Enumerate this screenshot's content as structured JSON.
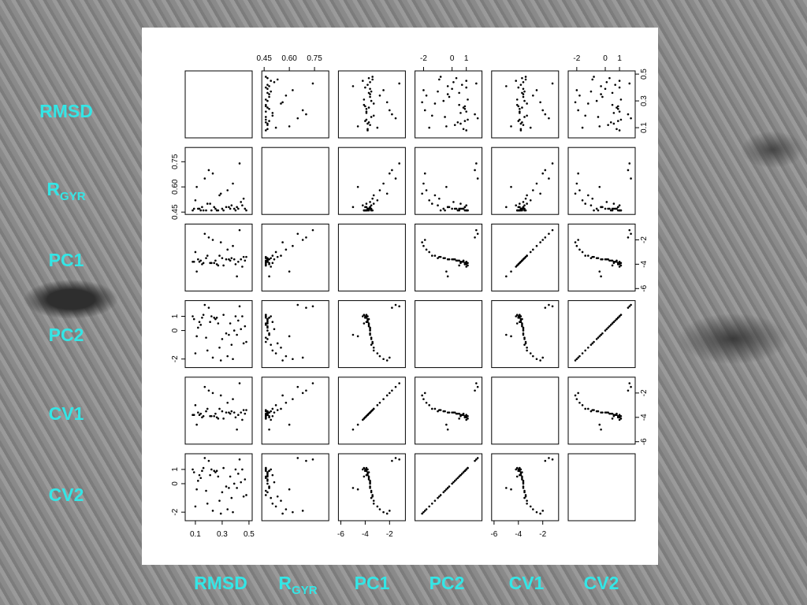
{
  "chart_data": {
    "type": "scatter_matrix",
    "variables": [
      {
        "label": "RMSD",
        "lim": [
          0.024,
          0.524
        ],
        "ticks": [
          0.1,
          0.3,
          0.5
        ],
        "values": [
          0.08,
          0.12,
          0.15,
          0.18,
          0.21,
          0.25,
          0.28,
          0.31,
          0.35,
          0.38,
          0.42,
          0.45,
          0.48,
          0.1,
          0.14,
          0.2,
          0.24,
          0.3,
          0.34,
          0.4,
          0.44,
          0.09,
          0.17,
          0.27,
          0.37,
          0.47,
          0.11,
          0.22,
          0.33,
          0.43,
          0.13,
          0.19,
          0.26,
          0.29,
          0.36,
          0.41,
          0.46,
          0.16,
          0.23,
          0.39
        ]
      },
      {
        "label": "R",
        "sub": "GYR",
        "lim": [
          0.436,
          0.835
        ],
        "ticks": [
          0.45,
          {
            "value": 0.6,
            "label": "0.60"
          },
          0.75
        ],
        "values": [
          0.46,
          0.47,
          0.48,
          0.46,
          0.5,
          0.47,
          0.55,
          0.46,
          0.48,
          0.62,
          0.47,
          0.49,
          0.46,
          0.52,
          0.46,
          0.7,
          0.48,
          0.47,
          0.58,
          0.46,
          0.51,
          0.47,
          0.65,
          0.46,
          0.49,
          0.47,
          0.6,
          0.46,
          0.48,
          0.74,
          0.47,
          0.5,
          0.46,
          0.56,
          0.47,
          0.48,
          0.53,
          0.46,
          0.68,
          0.47
        ]
      },
      {
        "label": "PC1",
        "lim": [
          -6.2,
          -0.7
        ],
        "ticks": [
          -6,
          -4,
          -2
        ],
        "values": [
          -3.8,
          -3.6,
          -4.0,
          -3.5,
          -3.9,
          -3.7,
          -3.3,
          -4.1,
          -3.6,
          -2.5,
          -3.8,
          -4.2,
          -3.4,
          -3.0,
          -3.7,
          -1.8,
          -3.9,
          -3.5,
          -2.8,
          -4.0,
          -3.6,
          -3.8,
          -1.5,
          -4.1,
          -3.5,
          -3.7,
          -4.6,
          -3.9,
          -3.6,
          -1.2,
          -3.8,
          -3.3,
          -4.0,
          -2.2,
          -3.7,
          -5.0,
          -3.4,
          -3.9,
          -2.0,
          -3.6
        ]
      },
      {
        "label": "PC2",
        "lim": [
          -2.6,
          2.1
        ],
        "ticks": [
          -2,
          0,
          1
        ],
        "values": [
          1.0,
          0.2,
          0.9,
          -0.5,
          0.6,
          0.8,
          -1.2,
          1.1,
          -0.3,
          -2.0,
          0.7,
          1.0,
          -0.8,
          -1.6,
          0.4,
          1.6,
          0.9,
          -0.6,
          -1.8,
          1.0,
          0.1,
          0.8,
          1.8,
          0.5,
          -1.0,
          0.3,
          -0.4,
          1.0,
          -0.2,
          1.7,
          0.6,
          -1.4,
          0.9,
          -2.1,
          0.5,
          -0.3,
          -0.9,
          1.1,
          -1.9,
          0.0
        ]
      },
      {
        "label": "CV1",
        "lim": [
          -6.2,
          -0.7
        ],
        "ticks": [
          -6,
          -4,
          -2
        ],
        "values": [
          -3.8,
          -3.6,
          -4.0,
          -3.5,
          -3.9,
          -3.7,
          -3.3,
          -4.1,
          -3.6,
          -2.5,
          -3.8,
          -4.2,
          -3.4,
          -3.0,
          -3.7,
          -1.8,
          -3.9,
          -3.5,
          -2.8,
          -4.0,
          -3.6,
          -3.8,
          -1.5,
          -4.1,
          -3.5,
          -3.7,
          -4.6,
          -3.9,
          -3.6,
          -1.2,
          -3.8,
          -3.3,
          -4.0,
          -2.2,
          -3.7,
          -5.0,
          -3.4,
          -3.9,
          -2.0,
          -3.6
        ]
      },
      {
        "label": "CV2",
        "lim": [
          -2.6,
          2.1
        ],
        "ticks": [
          -2,
          0,
          1
        ],
        "values": [
          1.0,
          0.2,
          0.9,
          -0.5,
          0.6,
          0.8,
          -1.2,
          1.1,
          -0.3,
          -2.0,
          0.7,
          1.0,
          -0.8,
          -1.6,
          0.4,
          1.6,
          0.9,
          -0.6,
          -1.8,
          1.0,
          0.1,
          0.8,
          1.8,
          0.5,
          -1.0,
          0.3,
          -0.4,
          1.0,
          -0.2,
          1.7,
          0.6,
          -1.4,
          0.9,
          -2.1,
          0.5,
          -0.3,
          -0.9,
          1.1,
          -1.9,
          0.0
        ]
      }
    ]
  }
}
